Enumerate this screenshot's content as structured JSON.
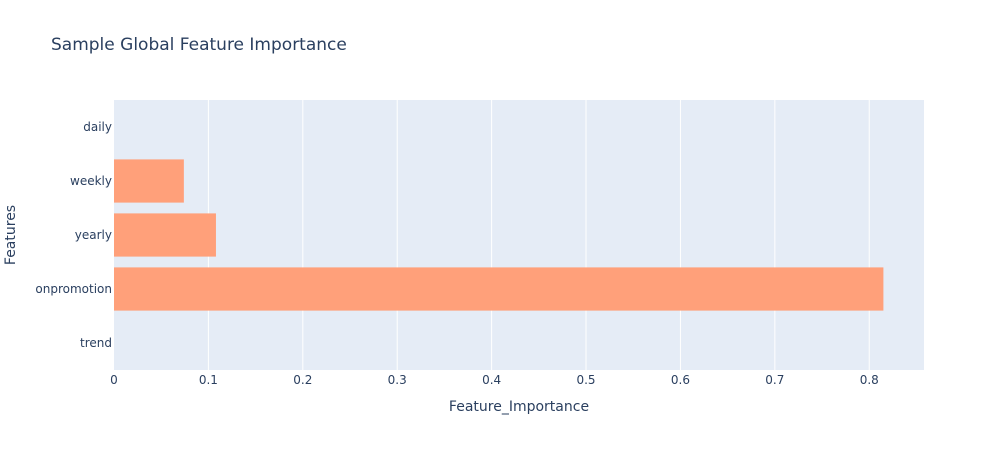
{
  "chart_data": {
    "type": "bar",
    "orientation": "horizontal",
    "title": "Sample Global Feature Importance",
    "xlabel": "Feature_Importance",
    "ylabel": "Features",
    "categories": [
      "trend",
      "onpromotion",
      "yearly",
      "weekly",
      "daily"
    ],
    "values": [
      0,
      0.815,
      0.108,
      0.074,
      0
    ],
    "xlim": [
      0,
      0.858
    ],
    "xticks": [
      0,
      0.1,
      0.2,
      0.3,
      0.4,
      0.5,
      0.6,
      0.7,
      0.8
    ],
    "xtick_labels": [
      "0",
      "0.1",
      "0.2",
      "0.3",
      "0.4",
      "0.5",
      "0.6",
      "0.7",
      "0.8"
    ],
    "grid": true,
    "colors": {
      "bar": "#ffa07a",
      "plot_bg": "#e5ecf6",
      "grid": "#ffffff",
      "text": "#2a3f5f"
    }
  }
}
